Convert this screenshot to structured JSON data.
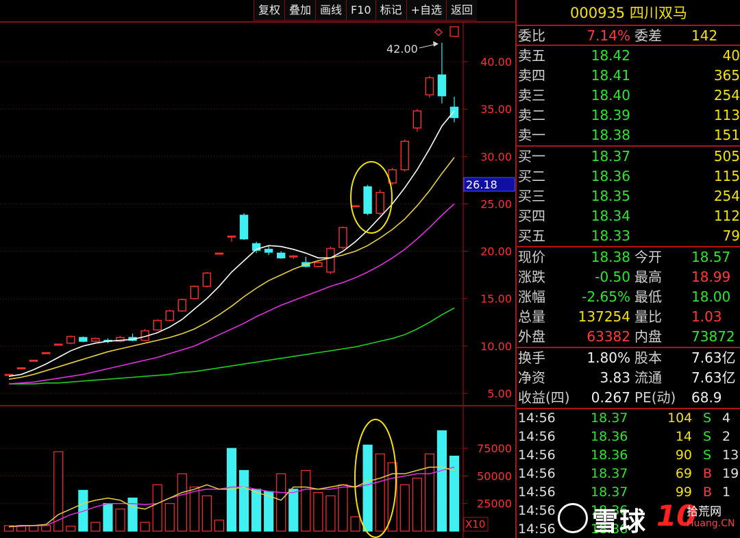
{
  "toolbar": {
    "buttons": [
      "复权",
      "叠加",
      "画线",
      "F10",
      "标记",
      "+自选",
      "返回"
    ]
  },
  "stock": {
    "code": "000935",
    "name": "四川双马"
  },
  "quote": {
    "weibi_label": "委比",
    "weibi_value": "7.14%",
    "weicha_label": "委差",
    "weicha_value": "142",
    "asks": [
      {
        "label": "卖五",
        "price": "18.42",
        "vol": "40"
      },
      {
        "label": "卖四",
        "price": "18.41",
        "vol": "365"
      },
      {
        "label": "卖三",
        "price": "18.40",
        "vol": "254"
      },
      {
        "label": "卖二",
        "price": "18.39",
        "vol": "113"
      },
      {
        "label": "卖一",
        "price": "18.38",
        "vol": "151"
      }
    ],
    "bids": [
      {
        "label": "买一",
        "price": "18.37",
        "vol": "505"
      },
      {
        "label": "买二",
        "price": "18.36",
        "vol": "115"
      },
      {
        "label": "买三",
        "price": "18.35",
        "vol": "254"
      },
      {
        "label": "买四",
        "price": "18.34",
        "vol": "112"
      },
      {
        "label": "买五",
        "price": "18.33",
        "vol": "79"
      }
    ],
    "stats1": [
      {
        "l1": "现价",
        "v1": "18.38",
        "c1": "g",
        "l2": "今开",
        "v2": "18.57",
        "c2": "g"
      },
      {
        "l1": "涨跌",
        "v1": "-0.50",
        "c1": "g",
        "l2": "最高",
        "v2": "18.99",
        "c2": "r"
      },
      {
        "l1": "涨幅",
        "v1": "-2.65%",
        "c1": "g",
        "l2": "最低",
        "v2": "18.00",
        "c2": "g"
      },
      {
        "l1": "总量",
        "v1": "137254",
        "c1": "y",
        "l2": "量比",
        "v2": "1.03",
        "c2": "r"
      },
      {
        "l1": "外盘",
        "v1": "63382",
        "c1": "r",
        "l2": "内盘",
        "v2": "73872",
        "c2": "g"
      }
    ],
    "stats2": [
      {
        "l1": "换手",
        "v1": "1.80%",
        "c1": "w",
        "l2": "股本",
        "v2": "7.63亿",
        "c2": "w"
      },
      {
        "l1": "净资",
        "v1": "3.83",
        "c1": "w",
        "l2": "流通",
        "v2": "7.63亿",
        "c2": "w"
      },
      {
        "l1": "收益(四)",
        "v1": "0.267",
        "c1": "w",
        "l2": "PE(动)",
        "v2": "68.9",
        "c2": "w"
      }
    ],
    "ticks": [
      {
        "t": "14:56",
        "p": "18.37",
        "v": "104",
        "bs": "S",
        "n": "4"
      },
      {
        "t": "14:56",
        "p": "18.36",
        "v": "14",
        "bs": "S",
        "n": "2"
      },
      {
        "t": "14:56",
        "p": "18.36",
        "v": "90",
        "bs": "S",
        "n": "13"
      },
      {
        "t": "14:56",
        "p": "18.37",
        "v": "69",
        "bs": "B",
        "n": "19"
      },
      {
        "t": "14:56",
        "p": "18.37",
        "v": "99",
        "bs": "B",
        "n": "1"
      },
      {
        "t": "14:56",
        "p": "18.36",
        "v": "",
        "bs": "",
        "n": ""
      },
      {
        "t": "14:56",
        "p": "18.36",
        "v": "",
        "bs": "",
        "n": ""
      }
    ]
  },
  "watermark": {
    "text": "雪球",
    "ten": "10",
    "site": "拾荒网",
    "domain": "Huang.CN"
  },
  "chart_data": [
    {
      "type": "candlestick",
      "y_ticks": [
        "40.00",
        "35.00",
        "30.00",
        "25.00",
        "20.00",
        "15.00",
        "10.00",
        "5.00"
      ],
      "ylim": [
        3.5,
        45
      ],
      "current_price_label": "26.18",
      "current_price": 26.18,
      "max_annotation": "42.00",
      "colors": {
        "up": "#ff3030",
        "down": "#40f0f0",
        "ma5": "#ffffff",
        "ma10": "#e8d040",
        "ma20": "#e030e0",
        "ma60": "#20d020"
      },
      "candles": [
        {
          "o": 7.0,
          "h": 7.0,
          "l": 7.0,
          "c": 7.0
        },
        {
          "o": 7.7,
          "h": 7.7,
          "l": 7.7,
          "c": 7.7
        },
        {
          "o": 8.5,
          "h": 8.5,
          "l": 8.5,
          "c": 8.5
        },
        {
          "o": 9.3,
          "h": 9.3,
          "l": 9.3,
          "c": 9.3
        },
        {
          "o": 10.2,
          "h": 10.2,
          "l": 10.2,
          "c": 10.2
        },
        {
          "o": 10.3,
          "h": 11.1,
          "l": 10.2,
          "c": 11.0
        },
        {
          "o": 10.9,
          "h": 11.0,
          "l": 10.4,
          "c": 10.5
        },
        {
          "o": 10.5,
          "h": 10.9,
          "l": 10.4,
          "c": 10.8
        },
        {
          "o": 10.6,
          "h": 10.8,
          "l": 10.3,
          "c": 10.5
        },
        {
          "o": 10.5,
          "h": 11.1,
          "l": 10.4,
          "c": 10.9
        },
        {
          "o": 10.9,
          "h": 11.3,
          "l": 10.5,
          "c": 10.6
        },
        {
          "o": 10.6,
          "h": 11.8,
          "l": 10.5,
          "c": 11.6
        },
        {
          "o": 11.7,
          "h": 12.8,
          "l": 11.6,
          "c": 12.7
        },
        {
          "o": 12.7,
          "h": 13.8,
          "l": 12.6,
          "c": 13.7
        },
        {
          "o": 13.7,
          "h": 15.0,
          "l": 13.6,
          "c": 14.9
        },
        {
          "o": 15.0,
          "h": 16.4,
          "l": 14.9,
          "c": 16.3
        },
        {
          "o": 16.3,
          "h": 17.8,
          "l": 16.2,
          "c": 17.7
        },
        {
          "o": 19.8,
          "h": 19.8,
          "l": 19.8,
          "c": 19.8
        },
        {
          "o": 21.6,
          "h": 21.6,
          "l": 21.0,
          "c": 21.6
        },
        {
          "o": 23.8,
          "h": 24.0,
          "l": 21.2,
          "c": 21.3
        },
        {
          "o": 20.8,
          "h": 21.0,
          "l": 19.8,
          "c": 20.1
        },
        {
          "o": 20.2,
          "h": 20.6,
          "l": 19.6,
          "c": 19.9
        },
        {
          "o": 19.8,
          "h": 20.0,
          "l": 19.2,
          "c": 19.3
        },
        {
          "o": 19.4,
          "h": 19.6,
          "l": 19.2,
          "c": 19.5
        },
        {
          "o": 18.8,
          "h": 19.4,
          "l": 18.3,
          "c": 18.4
        },
        {
          "o": 18.4,
          "h": 19.0,
          "l": 18.3,
          "c": 18.8
        },
        {
          "o": 17.8,
          "h": 20.5,
          "l": 17.6,
          "c": 20.3
        },
        {
          "o": 20.4,
          "h": 22.6,
          "l": 20.2,
          "c": 22.5
        },
        {
          "o": 24.8,
          "h": 24.8,
          "l": 24.8,
          "c": 24.8
        },
        {
          "o": 26.8,
          "h": 27.0,
          "l": 23.8,
          "c": 24.0
        },
        {
          "o": 24.0,
          "h": 26.5,
          "l": 23.8,
          "c": 26.2
        },
        {
          "o": 27.2,
          "h": 28.8,
          "l": 27.0,
          "c": 28.6
        },
        {
          "o": 28.6,
          "h": 31.8,
          "l": 28.4,
          "c": 31.6
        },
        {
          "o": 33.0,
          "h": 35.0,
          "l": 32.6,
          "c": 34.8
        },
        {
          "o": 36.5,
          "h": 38.5,
          "l": 36.2,
          "c": 38.3
        },
        {
          "o": 38.6,
          "h": 42.0,
          "l": 35.6,
          "c": 36.4
        },
        {
          "o": 35.2,
          "h": 36.3,
          "l": 33.6,
          "c": 34.1
        }
      ],
      "ma5": [
        6.8,
        7.0,
        7.5,
        8.1,
        8.8,
        9.5,
        10.0,
        10.3,
        10.5,
        10.6,
        10.7,
        11.0,
        11.4,
        12.0,
        12.8,
        13.9,
        15.0,
        16.3,
        17.8,
        19.0,
        20.2,
        20.6,
        20.5,
        20.2,
        19.8,
        19.3,
        19.3,
        20.0,
        21.0,
        22.2,
        23.6,
        25.0,
        26.7,
        28.6,
        30.8,
        33.2,
        34.8
      ],
      "ma10": [
        6.5,
        6.7,
        7.0,
        7.4,
        7.8,
        8.2,
        8.6,
        9.0,
        9.4,
        9.7,
        10.0,
        10.3,
        10.6,
        10.9,
        11.3,
        11.8,
        12.5,
        13.3,
        14.2,
        15.2,
        16.1,
        16.9,
        17.5,
        18.1,
        18.6,
        19.0,
        19.3,
        19.6,
        20.0,
        20.6,
        21.4,
        22.3,
        23.4,
        24.8,
        26.4,
        28.2,
        29.9
      ],
      "ma20": [
        6.0,
        6.1,
        6.2,
        6.4,
        6.6,
        6.8,
        7.0,
        7.3,
        7.6,
        7.9,
        8.2,
        8.5,
        8.8,
        9.2,
        9.6,
        10.0,
        10.6,
        11.2,
        11.8,
        12.4,
        13.1,
        13.7,
        14.3,
        14.8,
        15.3,
        15.8,
        16.3,
        16.7,
        17.2,
        17.8,
        18.5,
        19.3,
        20.2,
        21.3,
        22.5,
        23.8,
        25.0
      ],
      "ma60": [
        6.0,
        6.0,
        6.0,
        6.1,
        6.1,
        6.2,
        6.3,
        6.4,
        6.5,
        6.6,
        6.7,
        6.8,
        6.9,
        7.0,
        7.2,
        7.3,
        7.5,
        7.7,
        7.9,
        8.1,
        8.3,
        8.5,
        8.7,
        8.9,
        9.1,
        9.3,
        9.5,
        9.7,
        9.9,
        10.2,
        10.5,
        10.8,
        11.2,
        11.8,
        12.5,
        13.3,
        14.0
      ]
    },
    {
      "type": "bar",
      "y_ticks": [
        "75000",
        "50000",
        "25000"
      ],
      "multiplier_label": "X10",
      "ylim": [
        0,
        95000
      ],
      "volumes": [
        5000,
        5000,
        5000,
        5000,
        72000,
        4500,
        37000,
        8000,
        25000,
        20000,
        30000,
        8000,
        42000,
        25000,
        52000,
        40000,
        32000,
        10000,
        75000,
        55000,
        38000,
        36000,
        52000,
        38000,
        55000,
        35000,
        32000,
        42000,
        13000,
        78000,
        70000,
        62000,
        42000,
        48000,
        70000,
        91000,
        68000
      ],
      "vol_up": [
        true,
        true,
        true,
        true,
        true,
        true,
        false,
        true,
        false,
        true,
        false,
        true,
        true,
        true,
        true,
        true,
        true,
        true,
        false,
        false,
        false,
        false,
        true,
        false,
        true,
        true,
        true,
        true,
        true,
        false,
        true,
        true,
        true,
        true,
        true,
        false,
        false
      ],
      "vma5": [
        4000,
        5000,
        5000,
        6000,
        15000,
        20000,
        25000,
        28000,
        30000,
        28000,
        22000,
        20000,
        25000,
        30000,
        35000,
        38000,
        42000,
        38000,
        38000,
        40000,
        35000,
        32000,
        28000,
        40000,
        40000,
        38000,
        40000,
        42000,
        40000,
        45000,
        48000,
        52000,
        52000,
        55000,
        58000,
        58000,
        55000
      ],
      "vma10": [
        4000,
        4500,
        5000,
        5000,
        10000,
        15000,
        18000,
        22000,
        25000,
        25000,
        25000,
        24000,
        25000,
        30000,
        33000,
        36000,
        38000,
        38000,
        40000,
        40000,
        38000,
        36000,
        35000,
        35000,
        38000,
        38000,
        38000,
        40000,
        40000,
        42000,
        45000,
        48000,
        50000,
        52000,
        52000,
        55000,
        58000
      ]
    }
  ]
}
